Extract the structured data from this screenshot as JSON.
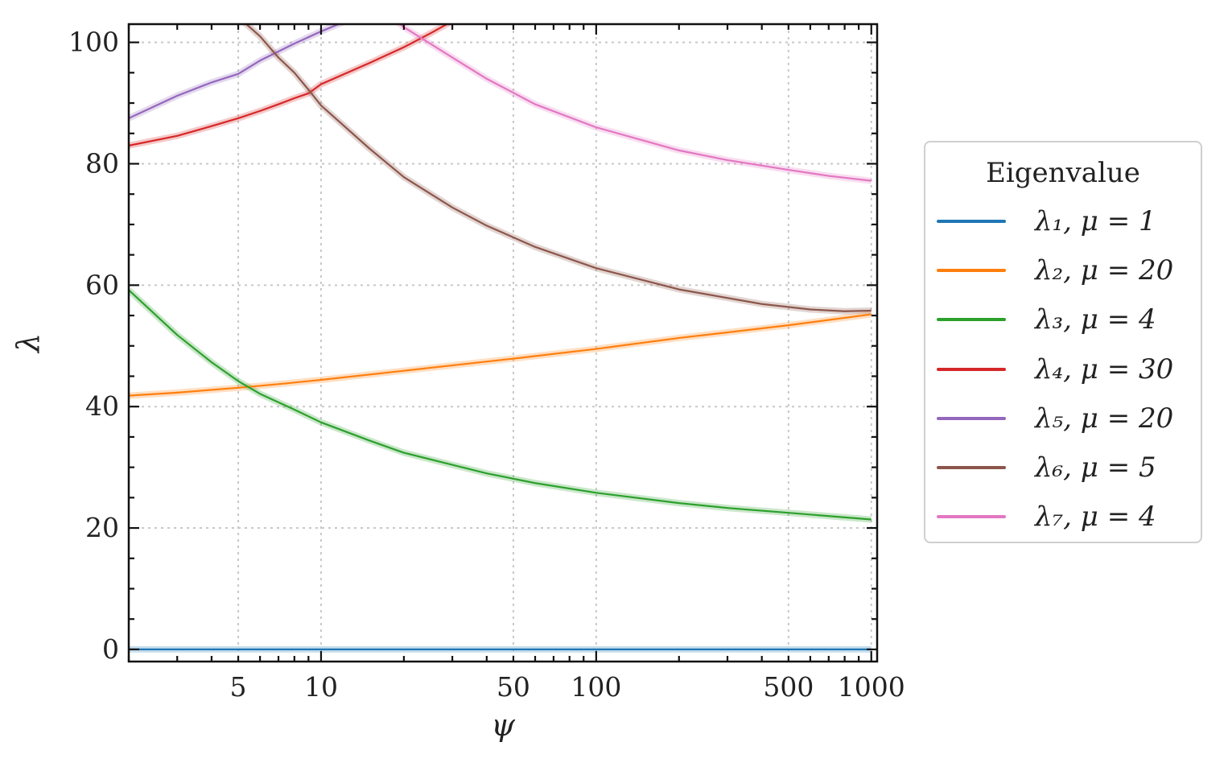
{
  "chart_data": {
    "type": "line",
    "xlabel": "ψ",
    "ylabel": "λ",
    "xscale": "log",
    "xlim": [
      2,
      1050
    ],
    "ylim": [
      -2,
      103
    ],
    "grid": true,
    "legend_placement": "outside-right",
    "legend_title": "Eigenvalue",
    "x_ticks": [
      5,
      10,
      50,
      100,
      500,
      1000
    ],
    "x_tick_labels": [
      "5",
      "10",
      "50",
      "100",
      "500",
      "1000"
    ],
    "y_ticks": [
      0,
      20,
      40,
      60,
      80,
      100
    ],
    "y_tick_labels": [
      "0",
      "20",
      "40",
      "60",
      "80",
      "100"
    ],
    "series": [
      {
        "name": "λ₁,  μ = 1",
        "color": "#1f77b4",
        "x": [
          2,
          5,
          10,
          50,
          100,
          500,
          1000
        ],
        "y": [
          0,
          0,
          0,
          0,
          0,
          0,
          0
        ]
      },
      {
        "name": "λ₂,  μ = 20",
        "color": "#ff7f0e",
        "x": [
          2,
          3,
          5,
          7,
          10,
          20,
          50,
          100,
          200,
          500,
          1000
        ],
        "y": [
          41.8,
          42.3,
          43.1,
          43.7,
          44.4,
          45.9,
          47.9,
          49.5,
          51.3,
          53.4,
          55.2
        ]
      },
      {
        "name": "λ₃,  μ = 4",
        "color": "#2ca02c",
        "x": [
          2,
          3,
          4,
          5,
          6,
          7,
          8,
          10,
          15,
          20,
          30,
          40,
          60,
          100,
          200,
          300,
          500,
          1000
        ],
        "y": [
          59.2,
          51.8,
          47.3,
          44.2,
          42.1,
          40.7,
          39.5,
          37.4,
          34.4,
          32.4,
          30.4,
          29.0,
          27.4,
          25.8,
          24.1,
          23.3,
          22.5,
          21.4
        ]
      },
      {
        "name": "λ₄,  μ = 30",
        "color": "#d62728",
        "x": [
          2,
          3,
          4,
          5,
          6,
          7,
          8,
          9,
          10,
          15,
          20,
          25,
          30
        ],
        "y": [
          83.0,
          84.6,
          86.2,
          87.5,
          88.7,
          89.8,
          90.8,
          91.6,
          93.1,
          96.6,
          99.2,
          101.5,
          103.5
        ]
      },
      {
        "name": "λ₅,  μ = 20",
        "color": "#9467bd",
        "x": [
          2,
          3,
          4,
          5,
          6,
          8,
          10,
          12
        ],
        "y": [
          87.5,
          91.2,
          93.4,
          94.8,
          97.0,
          99.8,
          101.8,
          103.3
        ]
      },
      {
        "name": "λ₆,  μ = 5",
        "color": "#8c564b",
        "x": [
          5.2,
          6,
          7,
          8,
          9,
          10,
          15,
          20,
          30,
          40,
          60,
          100,
          200,
          400,
          600,
          800,
          1000
        ],
        "y": [
          103.5,
          101,
          97.5,
          95,
          92.2,
          89.6,
          82.5,
          77.8,
          72.8,
          69.8,
          66.3,
          62.8,
          59.3,
          56.9,
          56.0,
          55.7,
          55.8
        ]
      },
      {
        "name": "λ₇,  μ = 4",
        "color": "#e377c2",
        "x": [
          19,
          20,
          30,
          40,
          60,
          100,
          200,
          300,
          500,
          700,
          1000
        ],
        "y": [
          103.3,
          102.5,
          97.5,
          94.0,
          89.8,
          86.0,
          82.2,
          80.6,
          79.0,
          78.0,
          77.2
        ]
      }
    ]
  }
}
